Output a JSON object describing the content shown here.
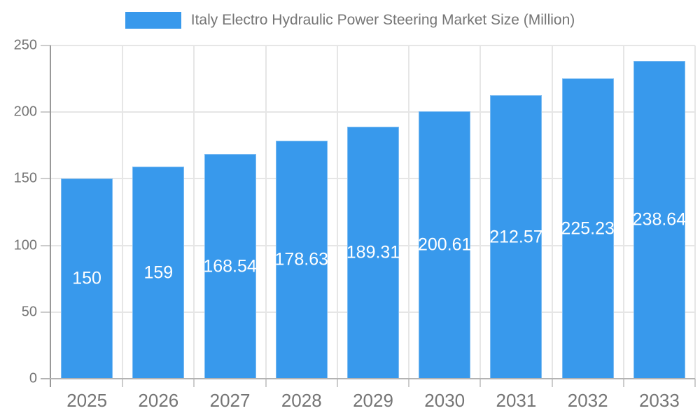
{
  "chart_data": {
    "type": "bar",
    "title": "Italy Electro Hydraulic Power Steering Market Size (Million)",
    "categories": [
      "2025",
      "2026",
      "2027",
      "2028",
      "2029",
      "2030",
      "2031",
      "2032",
      "2033"
    ],
    "values": [
      150,
      159,
      168.54,
      178.63,
      189.31,
      200.61,
      212.57,
      225.23,
      238.64
    ],
    "value_labels": [
      "150",
      "159",
      "168.54",
      "178.63",
      "189.31",
      "200.61",
      "212.57",
      "225.23",
      "238.64"
    ],
    "xlabel": "",
    "ylabel": "",
    "ylim": [
      0,
      250
    ],
    "yticks": [
      0,
      50,
      100,
      150,
      200,
      250
    ],
    "grid": true,
    "legend_position": "top",
    "bar_color": "#3899EC",
    "value_label_color": "#ffffff",
    "axis_label_color": "#757575",
    "gridline_color": "#e6e6e6",
    "tick_color": "#cccccc",
    "axis_line_color": "#999999",
    "baseline_color": "#b3b3b3",
    "background_color": "#ffffff"
  }
}
